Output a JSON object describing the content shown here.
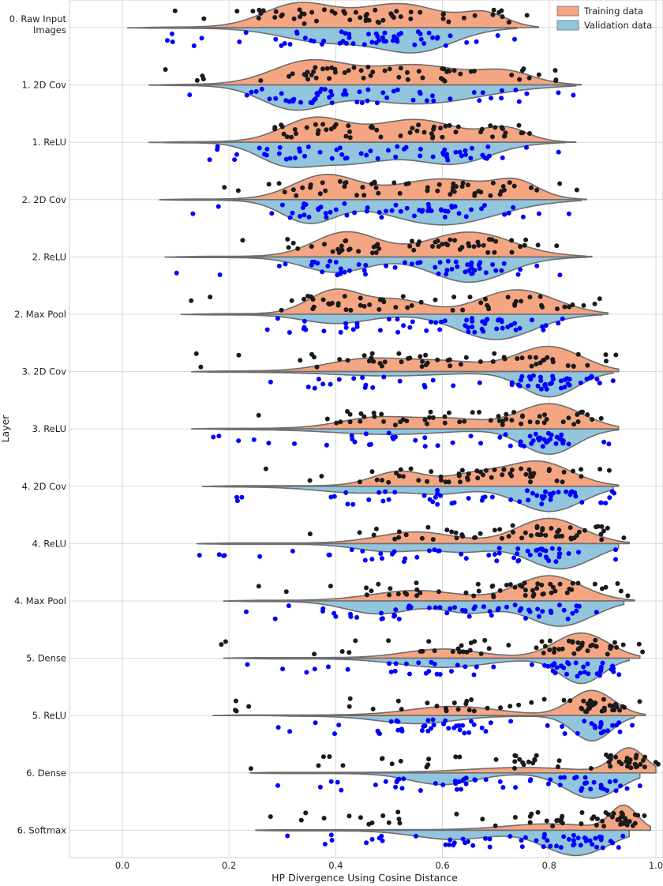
{
  "chart_data": {
    "type": "violin",
    "title": "",
    "xlabel": "HP Divergence Using Cosine Distance",
    "ylabel": "Layer",
    "xlim": [
      -0.1,
      1.0
    ],
    "xticks": [
      "0.0",
      "0.2",
      "0.4",
      "0.6",
      "0.8",
      "1.0"
    ],
    "xtick_values": [
      0.0,
      0.2,
      0.4,
      0.6,
      0.8,
      1.0
    ],
    "grid": true,
    "legend_position": "top-right",
    "series": [
      {
        "name": "Training data",
        "fill": "#f4a582",
        "point_color": "#1a1a1a",
        "side": "upper"
      },
      {
        "name": "Validation data",
        "fill": "#92c5de",
        "point_color": "#0000ff",
        "side": "lower"
      }
    ],
    "outline_color": "#6e6e6e",
    "layers": [
      {
        "label": "0. Raw Input\nImages",
        "train_range": [
          0.04,
          0.78
        ],
        "val_range": [
          0.01,
          0.74
        ],
        "train_modes": [
          [
            0.33,
            0.065,
            1.0
          ],
          [
            0.52,
            0.08,
            1.0
          ],
          [
            0.68,
            0.04,
            0.55
          ]
        ],
        "val_modes": [
          [
            0.38,
            0.08,
            0.6
          ],
          [
            0.55,
            0.07,
            1.0
          ]
        ]
      },
      {
        "label": "1. 2D Cov",
        "train_range": [
          0.07,
          0.86
        ],
        "val_range": [
          0.05,
          0.85
        ],
        "train_modes": [
          [
            0.35,
            0.07,
            1.0
          ],
          [
            0.55,
            0.09,
            0.85
          ],
          [
            0.72,
            0.05,
            0.5
          ]
        ],
        "val_modes": [
          [
            0.32,
            0.06,
            1.0
          ],
          [
            0.55,
            0.12,
            0.85
          ]
        ]
      },
      {
        "label": "1. ReLU",
        "train_range": [
          0.08,
          0.85
        ],
        "val_range": [
          0.05,
          0.83
        ],
        "train_modes": [
          [
            0.36,
            0.06,
            1.0
          ],
          [
            0.55,
            0.08,
            0.95
          ],
          [
            0.72,
            0.04,
            0.55
          ]
        ],
        "val_modes": [
          [
            0.3,
            0.05,
            0.8
          ],
          [
            0.42,
            0.08,
            1.0
          ],
          [
            0.62,
            0.07,
            1.0
          ]
        ]
      },
      {
        "label": "2. 2D Cov",
        "train_range": [
          0.08,
          0.87
        ],
        "val_range": [
          0.07,
          0.86
        ],
        "train_modes": [
          [
            0.38,
            0.06,
            1.0
          ],
          [
            0.6,
            0.09,
            0.85
          ],
          [
            0.74,
            0.04,
            0.6
          ]
        ],
        "val_modes": [
          [
            0.35,
            0.05,
            0.9
          ],
          [
            0.6,
            0.1,
            1.0
          ]
        ]
      },
      {
        "label": "2. ReLU",
        "train_range": [
          0.1,
          0.88
        ],
        "val_range": [
          0.08,
          0.87
        ],
        "train_modes": [
          [
            0.42,
            0.06,
            1.0
          ],
          [
            0.65,
            0.08,
            1.0
          ]
        ],
        "val_modes": [
          [
            0.4,
            0.06,
            0.6
          ],
          [
            0.65,
            0.07,
            1.0
          ]
        ]
      },
      {
        "label": "2. Max Pool",
        "train_range": [
          0.13,
          0.91
        ],
        "val_range": [
          0.11,
          0.9
        ],
        "train_modes": [
          [
            0.4,
            0.05,
            1.0
          ],
          [
            0.52,
            0.05,
            0.55
          ],
          [
            0.74,
            0.07,
            1.0
          ]
        ],
        "val_modes": [
          [
            0.4,
            0.06,
            0.35
          ],
          [
            0.7,
            0.07,
            1.0
          ]
        ]
      },
      {
        "label": "3. 2D Cov",
        "train_range": [
          0.14,
          0.93
        ],
        "val_range": [
          0.13,
          0.92
        ],
        "train_modes": [
          [
            0.45,
            0.07,
            0.45
          ],
          [
            0.6,
            0.08,
            0.4
          ],
          [
            0.8,
            0.06,
            1.0
          ]
        ],
        "val_modes": [
          [
            0.5,
            0.1,
            0.15
          ],
          [
            0.8,
            0.05,
            1.0
          ]
        ]
      },
      {
        "label": "3. ReLU",
        "train_range": [
          0.13,
          0.93
        ],
        "val_range": [
          0.16,
          0.93
        ],
        "train_modes": [
          [
            0.48,
            0.07,
            0.45
          ],
          [
            0.62,
            0.06,
            0.35
          ],
          [
            0.8,
            0.06,
            1.0
          ]
        ],
        "val_modes": [
          [
            0.5,
            0.1,
            0.2
          ],
          [
            0.8,
            0.05,
            1.0
          ]
        ]
      },
      {
        "label": "4. 2D Cov",
        "train_range": [
          0.17,
          0.93
        ],
        "val_range": [
          0.15,
          0.92
        ],
        "train_modes": [
          [
            0.52,
            0.05,
            0.6
          ],
          [
            0.66,
            0.05,
            0.45
          ],
          [
            0.78,
            0.06,
            1.0
          ]
        ],
        "val_modes": [
          [
            0.45,
            0.08,
            0.25
          ],
          [
            0.6,
            0.05,
            0.25
          ],
          [
            0.8,
            0.06,
            1.0
          ]
        ]
      },
      {
        "label": "4. ReLU",
        "train_range": [
          0.15,
          0.95
        ],
        "val_range": [
          0.14,
          0.93
        ],
        "train_modes": [
          [
            0.55,
            0.07,
            0.45
          ],
          [
            0.8,
            0.06,
            1.0
          ]
        ],
        "val_modes": [
          [
            0.5,
            0.06,
            0.3
          ],
          [
            0.64,
            0.05,
            0.3
          ],
          [
            0.82,
            0.06,
            1.0
          ]
        ]
      },
      {
        "label": "4. Max Pool",
        "train_range": [
          0.2,
          0.96
        ],
        "val_range": [
          0.19,
          0.94
        ],
        "train_modes": [
          [
            0.55,
            0.08,
            0.4
          ],
          [
            0.8,
            0.06,
            1.0
          ]
        ],
        "val_modes": [
          [
            0.48,
            0.06,
            0.5
          ],
          [
            0.65,
            0.05,
            0.45
          ],
          [
            0.82,
            0.06,
            1.0
          ]
        ]
      },
      {
        "label": "5. Dense",
        "train_range": [
          0.19,
          0.97
        ],
        "val_range": [
          0.22,
          0.95
        ],
        "train_modes": [
          [
            0.6,
            0.07,
            0.35
          ],
          [
            0.86,
            0.05,
            1.0
          ]
        ],
        "val_modes": [
          [
            0.6,
            0.08,
            0.35
          ],
          [
            0.86,
            0.04,
            1.0
          ]
        ]
      },
      {
        "label": "5. ReLU",
        "train_range": [
          0.17,
          0.98
        ],
        "val_range": [
          0.28,
          0.96
        ],
        "train_modes": [
          [
            0.62,
            0.08,
            0.35
          ],
          [
            0.88,
            0.04,
            1.0
          ]
        ],
        "val_modes": [
          [
            0.55,
            0.07,
            0.3
          ],
          [
            0.88,
            0.035,
            1.0
          ]
        ]
      },
      {
        "label": "6. Dense",
        "train_range": [
          0.24,
          1.0
        ],
        "val_range": [
          0.24,
          0.97
        ],
        "train_modes": [
          [
            0.75,
            0.1,
            0.2
          ],
          [
            0.95,
            0.03,
            1.0
          ]
        ],
        "val_modes": [
          [
            0.6,
            0.06,
            0.45
          ],
          [
            0.88,
            0.05,
            1.0
          ]
        ]
      },
      {
        "label": "6. Softmax",
        "train_range": [
          0.25,
          0.99
        ],
        "val_range": [
          0.25,
          0.95
        ],
        "train_modes": [
          [
            0.8,
            0.08,
            0.25
          ],
          [
            0.94,
            0.025,
            1.0
          ]
        ],
        "val_modes": [
          [
            0.62,
            0.07,
            0.35
          ],
          [
            0.85,
            0.06,
            1.0
          ]
        ]
      }
    ]
  }
}
